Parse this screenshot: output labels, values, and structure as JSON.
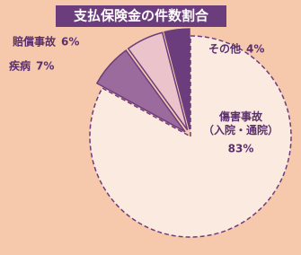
{
  "chart_data": {
    "type": "pie",
    "title": "支払保険金の件数割合",
    "categories": [
      "傷害事故（入院・通院）",
      "疾病",
      "賠償事故",
      "その他"
    ],
    "values": [
      83,
      7,
      6,
      4
    ],
    "value_labels": [
      "83%",
      "7%",
      "6%",
      "4%"
    ],
    "colors": [
      "#fbeadf",
      "#9b6b9e",
      "#eac3cb",
      "#6c3d7c"
    ]
  }
}
